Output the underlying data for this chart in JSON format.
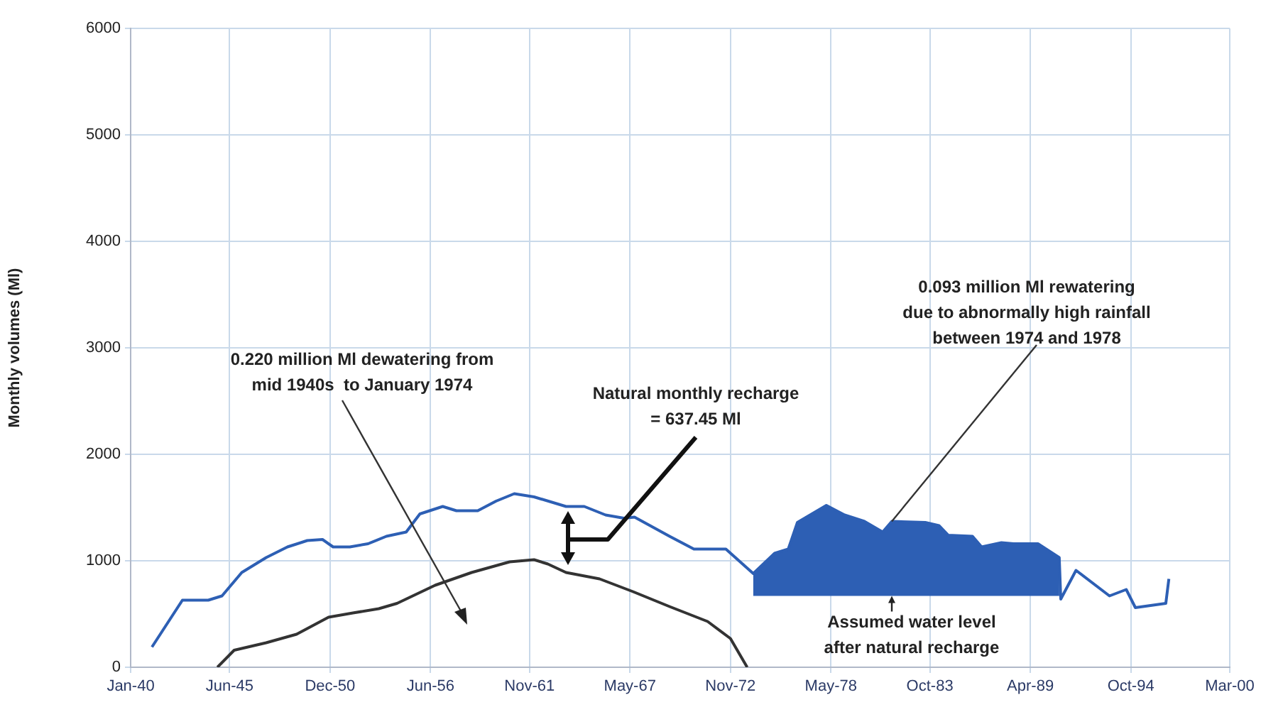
{
  "chart_data": {
    "type": "line",
    "ylabel": "Monthly volumes (Ml)",
    "xlim": [
      "1940-01",
      "2000-03"
    ],
    "xticks": [
      {
        "value": "1940-01",
        "label": "Jan-40"
      },
      {
        "value": "1945-06",
        "label": "Jun-45"
      },
      {
        "value": "1950-12",
        "label": "Dec-50"
      },
      {
        "value": "1956-06",
        "label": "Jun-56"
      },
      {
        "value": "1961-11",
        "label": "Nov-61"
      },
      {
        "value": "1967-05",
        "label": "May-67"
      },
      {
        "value": "1972-11",
        "label": "Nov-72"
      },
      {
        "value": "1978-05",
        "label": "May-78"
      },
      {
        "value": "1983-10",
        "label": "Oct-83"
      },
      {
        "value": "1989-04",
        "label": "Apr-89"
      },
      {
        "value": "1994-10",
        "label": "Oct-94"
      },
      {
        "value": "2000-03",
        "label": "Mar-00"
      }
    ],
    "ylim": [
      0,
      6000
    ],
    "yticks": [
      0,
      1000,
      2000,
      3000,
      4000,
      5000,
      6000
    ],
    "grid": true,
    "legend": false,
    "marker": "none",
    "series": [
      {
        "type": "line",
        "color": "#2d5fb4",
        "x": [
          "1941-03",
          "1942-11",
          "1944-04",
          "1945-01",
          "1946-02",
          "1947-06",
          "1948-08",
          "1949-09",
          "1950-07",
          "1951-02",
          "1952-01",
          "1953-01",
          "1954-01",
          "1955-02",
          "1955-11",
          "1957-02",
          "1957-11",
          "1959-01",
          "1960-01",
          "1961-01",
          "1962-02",
          "1963-11",
          "1964-11",
          "1966-01",
          "1967-01",
          "1967-08",
          "1969-07",
          "1970-11",
          "1972-08",
          "1974-02",
          "1975-04",
          "1976-01",
          "1976-07",
          "1978-02",
          "1979-02",
          "1980-03",
          "1981-03",
          "1981-09",
          "1983-07",
          "1984-04",
          "1984-10",
          "1986-02",
          "1986-08",
          "1987-09",
          "1988-05",
          "1989-09",
          "1990-11",
          "1990-12",
          "1991-10",
          "1993-08",
          "1994-07",
          "1995-01",
          "1996-09",
          "1996-11"
        ],
        "values": [
          190,
          630,
          630,
          670,
          890,
          1030,
          1130,
          1190,
          1200,
          1130,
          1130,
          1160,
          1230,
          1270,
          1440,
          1510,
          1470,
          1470,
          1560,
          1630,
          1600,
          1510,
          1510,
          1430,
          1400,
          1410,
          1230,
          1110,
          1110,
          880,
          1070,
          1110,
          1360,
          1520,
          1430,
          1370,
          1270,
          1370,
          1360,
          1330,
          1240,
          1230,
          1130,
          1170,
          1160,
          1160,
          1030,
          640,
          910,
          670,
          730,
          560,
          600,
          830
        ],
        "lower": [
          null,
          null,
          null,
          null,
          null,
          null,
          null,
          null,
          null,
          null,
          null,
          null,
          null,
          null,
          null,
          null,
          null,
          null,
          null,
          null,
          null,
          null,
          null,
          null,
          null,
          null,
          null,
          null,
          null,
          670,
          670,
          670,
          670,
          670,
          670,
          670,
          670,
          670,
          670,
          670,
          670,
          670,
          670,
          670,
          670,
          670,
          670,
          null,
          null,
          null,
          null,
          null,
          null,
          null
        ],
        "upper": [
          null,
          null,
          null,
          null,
          null,
          null,
          null,
          null,
          null,
          null,
          null,
          null,
          null,
          null,
          null,
          null,
          null,
          null,
          null,
          null,
          null,
          null,
          null,
          null,
          null,
          null,
          null,
          null,
          null,
          880,
          1070,
          1110,
          1360,
          1520,
          1430,
          1370,
          1270,
          1370,
          1360,
          1330,
          1240,
          1230,
          1130,
          1170,
          1160,
          1160,
          1030,
          null,
          null,
          null,
          null,
          null,
          null,
          null
        ]
      },
      {
        "type": "line",
        "color": "#333333",
        "x": [
          "1944-10",
          "1945-09",
          "1947-06",
          "1949-02",
          "1950-11",
          "1952-03",
          "1953-08",
          "1954-08",
          "1956-09",
          "1958-09",
          "1960-10",
          "1962-02",
          "1962-11",
          "1963-11",
          "1965-09",
          "1967-07",
          "1969-07",
          "1971-08",
          "1972-11",
          "1973-10"
        ],
        "values": [
          0,
          160,
          230,
          310,
          470,
          510,
          550,
          600,
          770,
          890,
          990,
          1010,
          970,
          890,
          830,
          710,
          570,
          430,
          270,
          0
        ]
      }
    ],
    "annotations": [
      "0.220 million Ml dewatering from\nmid 1940s  to January 1974",
      "Natural monthly recharge\n= 637.45 Ml",
      {
        "text": "0.093 million Ml rewatering\ndue to abnormally high rainfall\nbetween 1974 and 1978",
        "x": "1981-09",
        "y": 1370
      },
      {
        "text": "Assumed water level\nafter natural recharge",
        "x": "1981-09",
        "y": 670
      }
    ]
  }
}
